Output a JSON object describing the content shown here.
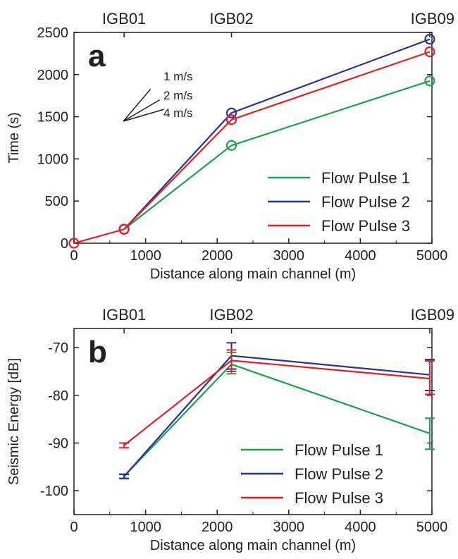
{
  "colors": {
    "pulse1": "#1aa24a",
    "pulse2": "#2e3192",
    "pulse3": "#e31e24",
    "axis": "#231f20"
  },
  "chart_data": [
    {
      "panel": "a",
      "type": "line",
      "xlabel": "Distance along main channel (m)",
      "ylabel": "Time (s)",
      "xlim": [
        0,
        5000
      ],
      "ylim": [
        0,
        2500
      ],
      "xticks": [
        0,
        1000,
        2000,
        3000,
        4000,
        5000
      ],
      "yticks": [
        0,
        500,
        1000,
        1500,
        2000,
        2500
      ],
      "gauges": [
        {
          "name": "IGB01",
          "x": 700
        },
        {
          "name": "IGB02",
          "x": 2200
        },
        {
          "name": "IGB09",
          "x": 4970
        }
      ],
      "legend_position": "bottom-right",
      "marker": "circle",
      "series": [
        {
          "name": "Flow Pulse 1",
          "color": "#1aa24a",
          "x": [
            700,
            2200,
            4970
          ],
          "y": [
            165,
            1160,
            1925
          ]
        },
        {
          "name": "Flow Pulse 2",
          "color": "#2e3192",
          "x": [
            700,
            2200,
            4970
          ],
          "y": [
            165,
            1545,
            2420
          ]
        },
        {
          "name": "Flow Pulse 3",
          "color": "#e31e24",
          "x": [
            0,
            700,
            2200,
            4970
          ],
          "y": [
            0,
            165,
            1465,
            2270
          ]
        }
      ],
      "velocity_guides": [
        {
          "label": "1 m/s",
          "slope": 1
        },
        {
          "label": "2 m/s",
          "slope": 0.5
        },
        {
          "label": "4 m/s",
          "slope": 0.25
        }
      ]
    },
    {
      "panel": "b",
      "type": "line",
      "xlabel": "Distance along main channel (m)",
      "ylabel": "Seismic Energy [dB]",
      "xlim": [
        0,
        5000
      ],
      "ylim": [
        -105,
        -66
      ],
      "xticks": [
        0,
        1000,
        2000,
        3000,
        4000,
        5000
      ],
      "yticks": [
        -100,
        -90,
        -80,
        -70
      ],
      "gauges": [
        {
          "name": "IGB01",
          "x": 700
        },
        {
          "name": "IGB02",
          "x": 2200
        },
        {
          "name": "IGB09",
          "x": 4970
        }
      ],
      "legend_position": "bottom-right",
      "marker": "errorbar",
      "series": [
        {
          "name": "Flow Pulse 1",
          "color": "#1aa24a",
          "x": [
            700,
            2200,
            4970
          ],
          "y": [
            -97.0,
            -73.5,
            -88.0
          ],
          "err_low": [
            -97.5,
            -75.5,
            -91.3
          ],
          "err_high": [
            -96.5,
            -71.0,
            -84.8
          ]
        },
        {
          "name": "Flow Pulse 2",
          "color": "#2e3192",
          "x": [
            700,
            2200,
            4970
          ],
          "y": [
            -97.0,
            -71.7,
            -75.7
          ],
          "err_low": [
            -97.4,
            -74.5,
            -79.0
          ],
          "err_high": [
            -96.6,
            -69.0,
            -72.5
          ]
        },
        {
          "name": "Flow Pulse 3",
          "color": "#e31e24",
          "x": [
            700,
            2200,
            4970
          ],
          "y": [
            -90.5,
            -72.7,
            -76.5
          ],
          "err_low": [
            -91.0,
            -75.0,
            -79.8
          ],
          "err_high": [
            -90.0,
            -70.5,
            -72.8
          ]
        }
      ]
    }
  ]
}
